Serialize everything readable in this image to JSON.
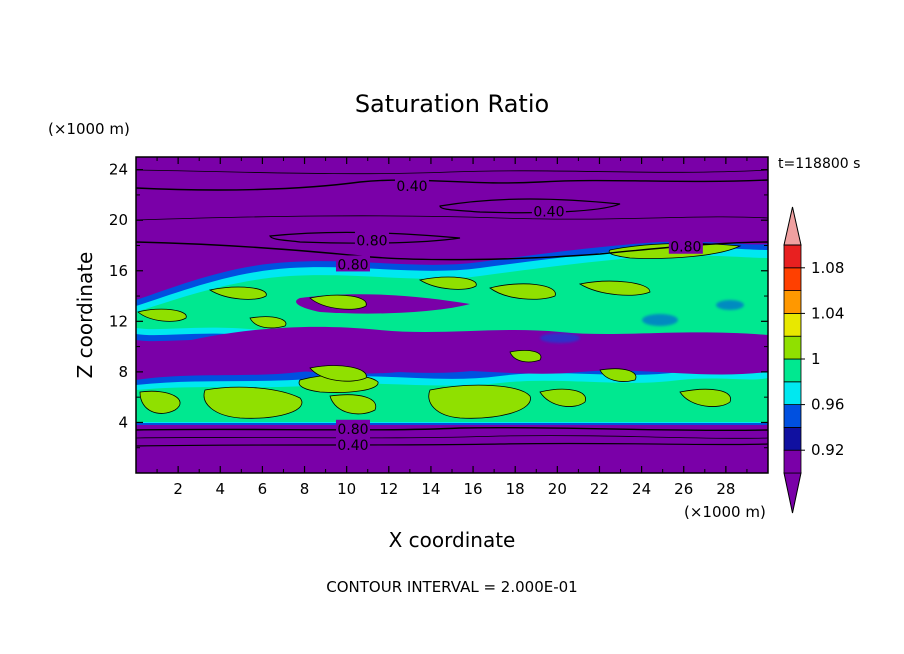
{
  "chart_data": {
    "type": "heatmap",
    "title": "Saturation Ratio",
    "xlabel": "X coordinate",
    "ylabel": "Z coordinate",
    "x_unit": "(×1000 m)",
    "y_unit": "(×1000 m)",
    "time_label": "t=118800 s",
    "footer": "CONTOUR INTERVAL = 2.000E-01",
    "xlim": [
      0,
      30
    ],
    "ylim": [
      0,
      25
    ],
    "x_ticks": [
      "2",
      "4",
      "6",
      "8",
      "10",
      "12",
      "14",
      "16",
      "18",
      "20",
      "22",
      "24",
      "26",
      "28"
    ],
    "y_ticks": [
      "4",
      "8",
      "12",
      "16",
      "20",
      "24"
    ],
    "colorbar_ticks": [
      "0.92",
      "0.96",
      "1",
      "1.04",
      "1.08"
    ],
    "colorbar_levels": [
      0.9,
      0.92,
      0.94,
      0.96,
      0.98,
      1.0,
      1.02,
      1.04,
      1.06,
      1.08,
      1.1
    ],
    "colorbar_colors": [
      "#7a00a8",
      "#1010a0",
      "#0050e0",
      "#00e8f0",
      "#00e890",
      "#90e000",
      "#e8e800",
      "#ff9800",
      "#ff4000",
      "#e82020",
      "#f0a0a0"
    ],
    "contour_interval": 0.2,
    "contour_labels": [
      {
        "text": "0.40",
        "x": 13.1,
        "y": 22.7
      },
      {
        "text": "0.40",
        "x": 19.6,
        "y": 20.7
      },
      {
        "text": "0.80",
        "x": 11.2,
        "y": 18.4
      },
      {
        "text": "0.80",
        "x": 10.3,
        "y": 16.5
      },
      {
        "text": "0.80",
        "x": 26.1,
        "y": 17.9
      },
      {
        "text": "0.80",
        "x": 10.3,
        "y": 3.5
      },
      {
        "text": "0.40",
        "x": 10.3,
        "y": 2.2
      }
    ],
    "regions": {
      "upper_dry": {
        "level": 0.9,
        "z_range": [
          18,
          25
        ]
      },
      "cloud_layer_upper": {
        "levels": [
          0.96,
          0.98,
          1.0
        ],
        "z_range": [
          11,
          18
        ]
      },
      "mid_dry": {
        "level": 0.9,
        "z_range": [
          8,
          11
        ]
      },
      "cloud_layer_lower": {
        "levels": [
          0.96,
          0.98,
          1.0
        ],
        "z_range": [
          4,
          8
        ]
      },
      "lower_dry": {
        "level": 0.9,
        "z_range": [
          0,
          4
        ]
      }
    }
  }
}
